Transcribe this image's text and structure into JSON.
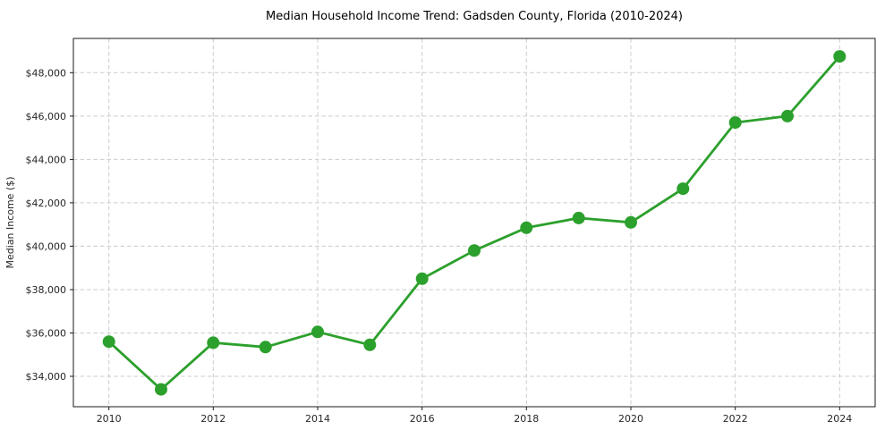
{
  "chart_data": {
    "type": "line",
    "title": "Median Household Income Trend: Gadsden County, Florida (2010-2024)",
    "xlabel": "",
    "ylabel": "Median Income ($)",
    "x": [
      2010,
      2011,
      2012,
      2013,
      2014,
      2015,
      2016,
      2017,
      2018,
      2019,
      2020,
      2021,
      2022,
      2023,
      2024
    ],
    "series": [
      {
        "name": "Median Household Income",
        "values": [
          35600,
          33400,
          35550,
          35350,
          36050,
          35450,
          38500,
          39800,
          40850,
          41300,
          41100,
          42650,
          45700,
          46000,
          48750
        ]
      }
    ],
    "xticks": [
      2010,
      2012,
      2014,
      2016,
      2018,
      2020,
      2022,
      2024
    ],
    "xtick_labels": [
      "2010",
      "2012",
      "2014",
      "2016",
      "2018",
      "2020",
      "2022",
      "2024"
    ],
    "yticks": [
      34000,
      36000,
      38000,
      40000,
      42000,
      44000,
      46000,
      48000
    ],
    "ytick_labels": [
      "$34,000",
      "$36,000",
      "$38,000",
      "$40,000",
      "$42,000",
      "$44,000",
      "$46,000",
      "$48,000"
    ],
    "xlim": [
      2009.32,
      2024.68
    ],
    "ylim": [
      32600,
      49580
    ],
    "grid": true,
    "grid_linestyle": "dashed",
    "legend_position": "none",
    "marker": "circle",
    "colors": {
      "line": "#2ca02c",
      "marker": "#2ca02c",
      "grid": "#cccccc",
      "spine": "#1a1a1a",
      "tick_text": "#262626",
      "background": "#ffffff"
    }
  }
}
